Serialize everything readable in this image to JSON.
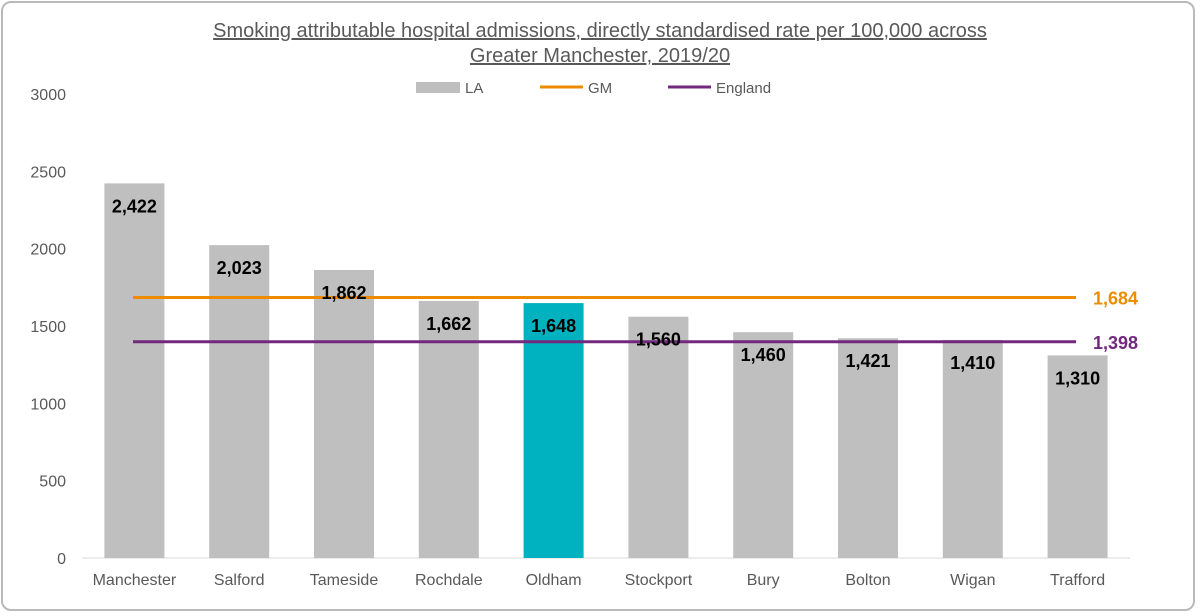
{
  "chart_data": {
    "type": "bar",
    "title_lines": [
      "Smoking attributable hospital admissions, directly standardised rate per 100,000 across",
      "Greater Manchester, 2019/20"
    ],
    "categories": [
      "Manchester",
      "Salford",
      "Tameside",
      "Rochdale",
      "Oldham",
      "Stockport",
      "Bury",
      "Bolton",
      "Wigan",
      "Trafford"
    ],
    "series": [
      {
        "name": "LA",
        "values": [
          2422,
          2023,
          1862,
          1662,
          1648,
          1560,
          1460,
          1421,
          1410,
          1310
        ],
        "color": "#bfbfbf"
      }
    ],
    "data_labels": [
      "2,422",
      "2,023",
      "1,862",
      "1,662",
      "1,648",
      "1,560",
      "1,460",
      "1,421",
      "1,410",
      "1,310"
    ],
    "highlight": {
      "category": "Oldham",
      "color": "#00b2bf"
    },
    "reference_lines": [
      {
        "name": "GM",
        "value": 1684,
        "label": "1,684",
        "color": "#ed8b00"
      },
      {
        "name": "England",
        "value": 1398,
        "label": "1,398",
        "color": "#72287f"
      }
    ],
    "y_ticks": [
      "0",
      "500",
      "1000",
      "1500",
      "2000",
      "2500",
      "3000"
    ],
    "ylim": [
      0,
      3000
    ],
    "grid": false,
    "legend_position": "top-center"
  }
}
